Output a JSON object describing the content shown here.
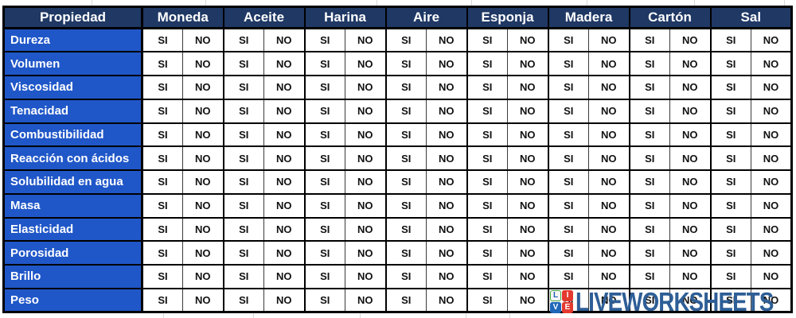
{
  "table": {
    "corner_header": "Propiedad",
    "materials": [
      "Moneda",
      "Aceite",
      "Harina",
      "Aire",
      "Esponja",
      "Madera",
      "Cartón",
      "Sal"
    ],
    "options": [
      "SI",
      "NO"
    ],
    "rows": [
      {
        "property": "Dureza",
        "cells": [
          "SI",
          "NO",
          "SI",
          "NO",
          "SI",
          "NO",
          "SI",
          "NO",
          "SI",
          "NO",
          "SI",
          "NO",
          "SI",
          "NO",
          "SI",
          "NO"
        ]
      },
      {
        "property": "Volumen",
        "cells": [
          "SI",
          "NO",
          "SI",
          "NO",
          "SI",
          "NO",
          "SI",
          "NO",
          "SI",
          "NO",
          "SI",
          "NO",
          "SI",
          "NO",
          "SI",
          "NO"
        ]
      },
      {
        "property": "Viscosidad",
        "cells": [
          "SI",
          "NO",
          "SI",
          "NO",
          "SI",
          "NO",
          "SI",
          "NO",
          "SI",
          "NO",
          "SI",
          "NO",
          "SI",
          "NO",
          "SI",
          "NO"
        ]
      },
      {
        "property": "Tenacidad",
        "cells": [
          "SI",
          "NO",
          "SI",
          "NO",
          "SI",
          "NO",
          "SI",
          "NO",
          "SI",
          "NO",
          "SI",
          "NO",
          "SI",
          "NO",
          "SI",
          "NO"
        ]
      },
      {
        "property": "Combustibilidad",
        "cells": [
          "SI",
          "NO",
          "SI",
          "NO",
          "SI",
          "NO",
          "SI",
          "NO",
          "SI",
          "NO",
          "SI",
          "NO",
          "SI",
          "NO",
          "SI",
          "NO"
        ]
      },
      {
        "property": "Reacción con ácidos",
        "cells": [
          "SI",
          "NO",
          "SI",
          "NO",
          "SI",
          "NO",
          "SI",
          "NO",
          "SI",
          "NO",
          "SI",
          "NO",
          "SI",
          "NO",
          "SI",
          "NO"
        ]
      },
      {
        "property": "Solubilidad en agua",
        "cells": [
          "SI",
          "NO",
          "SI",
          "NO",
          "SI",
          "NO",
          "SI",
          "NO",
          "SI",
          "NO",
          "SI",
          "NO",
          "SI",
          "NO",
          "SI",
          "NO"
        ]
      },
      {
        "property": "Masa",
        "cells": [
          "SI",
          "NO",
          "SI",
          "NO",
          "SI",
          "NO",
          "SI",
          "NO",
          "SI",
          "NO",
          "SI",
          "NO",
          "SI",
          "NO",
          "SI",
          "NO"
        ]
      },
      {
        "property": "Elasticidad",
        "cells": [
          "SI",
          "NO",
          "SI",
          "NO",
          "SI",
          "NO",
          "SI",
          "NO",
          "SI",
          "NO",
          "SI",
          "NO",
          "SI",
          "NO",
          "SI",
          "NO"
        ]
      },
      {
        "property": "Porosidad",
        "cells": [
          "SI",
          "NO",
          "SI",
          "NO",
          "SI",
          "NO",
          "SI",
          "NO",
          "SI",
          "NO",
          "SI",
          "NO",
          "SI",
          "NO",
          "SI",
          "NO"
        ]
      },
      {
        "property": "Brillo",
        "cells": [
          "SI",
          "NO",
          "SI",
          "NO",
          "SI",
          "NO",
          "SI",
          "NO",
          "SI",
          "NO",
          "SI",
          "NO",
          "SI",
          "NO",
          "SI",
          "NO"
        ]
      },
      {
        "property": "Peso",
        "cells": [
          "SI",
          "NO",
          "SI",
          "NO",
          "SI",
          "NO",
          "SI",
          "NO",
          "SI",
          "NO",
          "SI",
          "NO",
          "SI",
          "NO",
          "SI",
          "NO"
        ]
      }
    ]
  },
  "watermark": {
    "text": "LIVEWORKSHEETS",
    "text_color": "#2e5e96",
    "logo_tiles": [
      {
        "letter": "L",
        "bg": "#f4f4f4",
        "fg": "#1e66b8",
        "edge": "#3fa33f"
      },
      {
        "letter": "I",
        "bg": "#e4392e",
        "fg": "#ffffff",
        "edge": "#e4392e"
      },
      {
        "letter": "V",
        "bg": "#1e66b8",
        "fg": "#ffffff",
        "edge": "#1e66b8"
      },
      {
        "letter": "E",
        "bg": "#e4392e",
        "fg": "#ffffff",
        "edge": "#e4392e"
      }
    ]
  },
  "colors": {
    "header_bg": "#1f3864",
    "row_label_bg": "#2057c8",
    "cell_bg": "#ffffff",
    "header_text": "#ffffff",
    "row_label_text": "#ffffff",
    "cell_text": "#111111",
    "grid_border": "#000000"
  }
}
